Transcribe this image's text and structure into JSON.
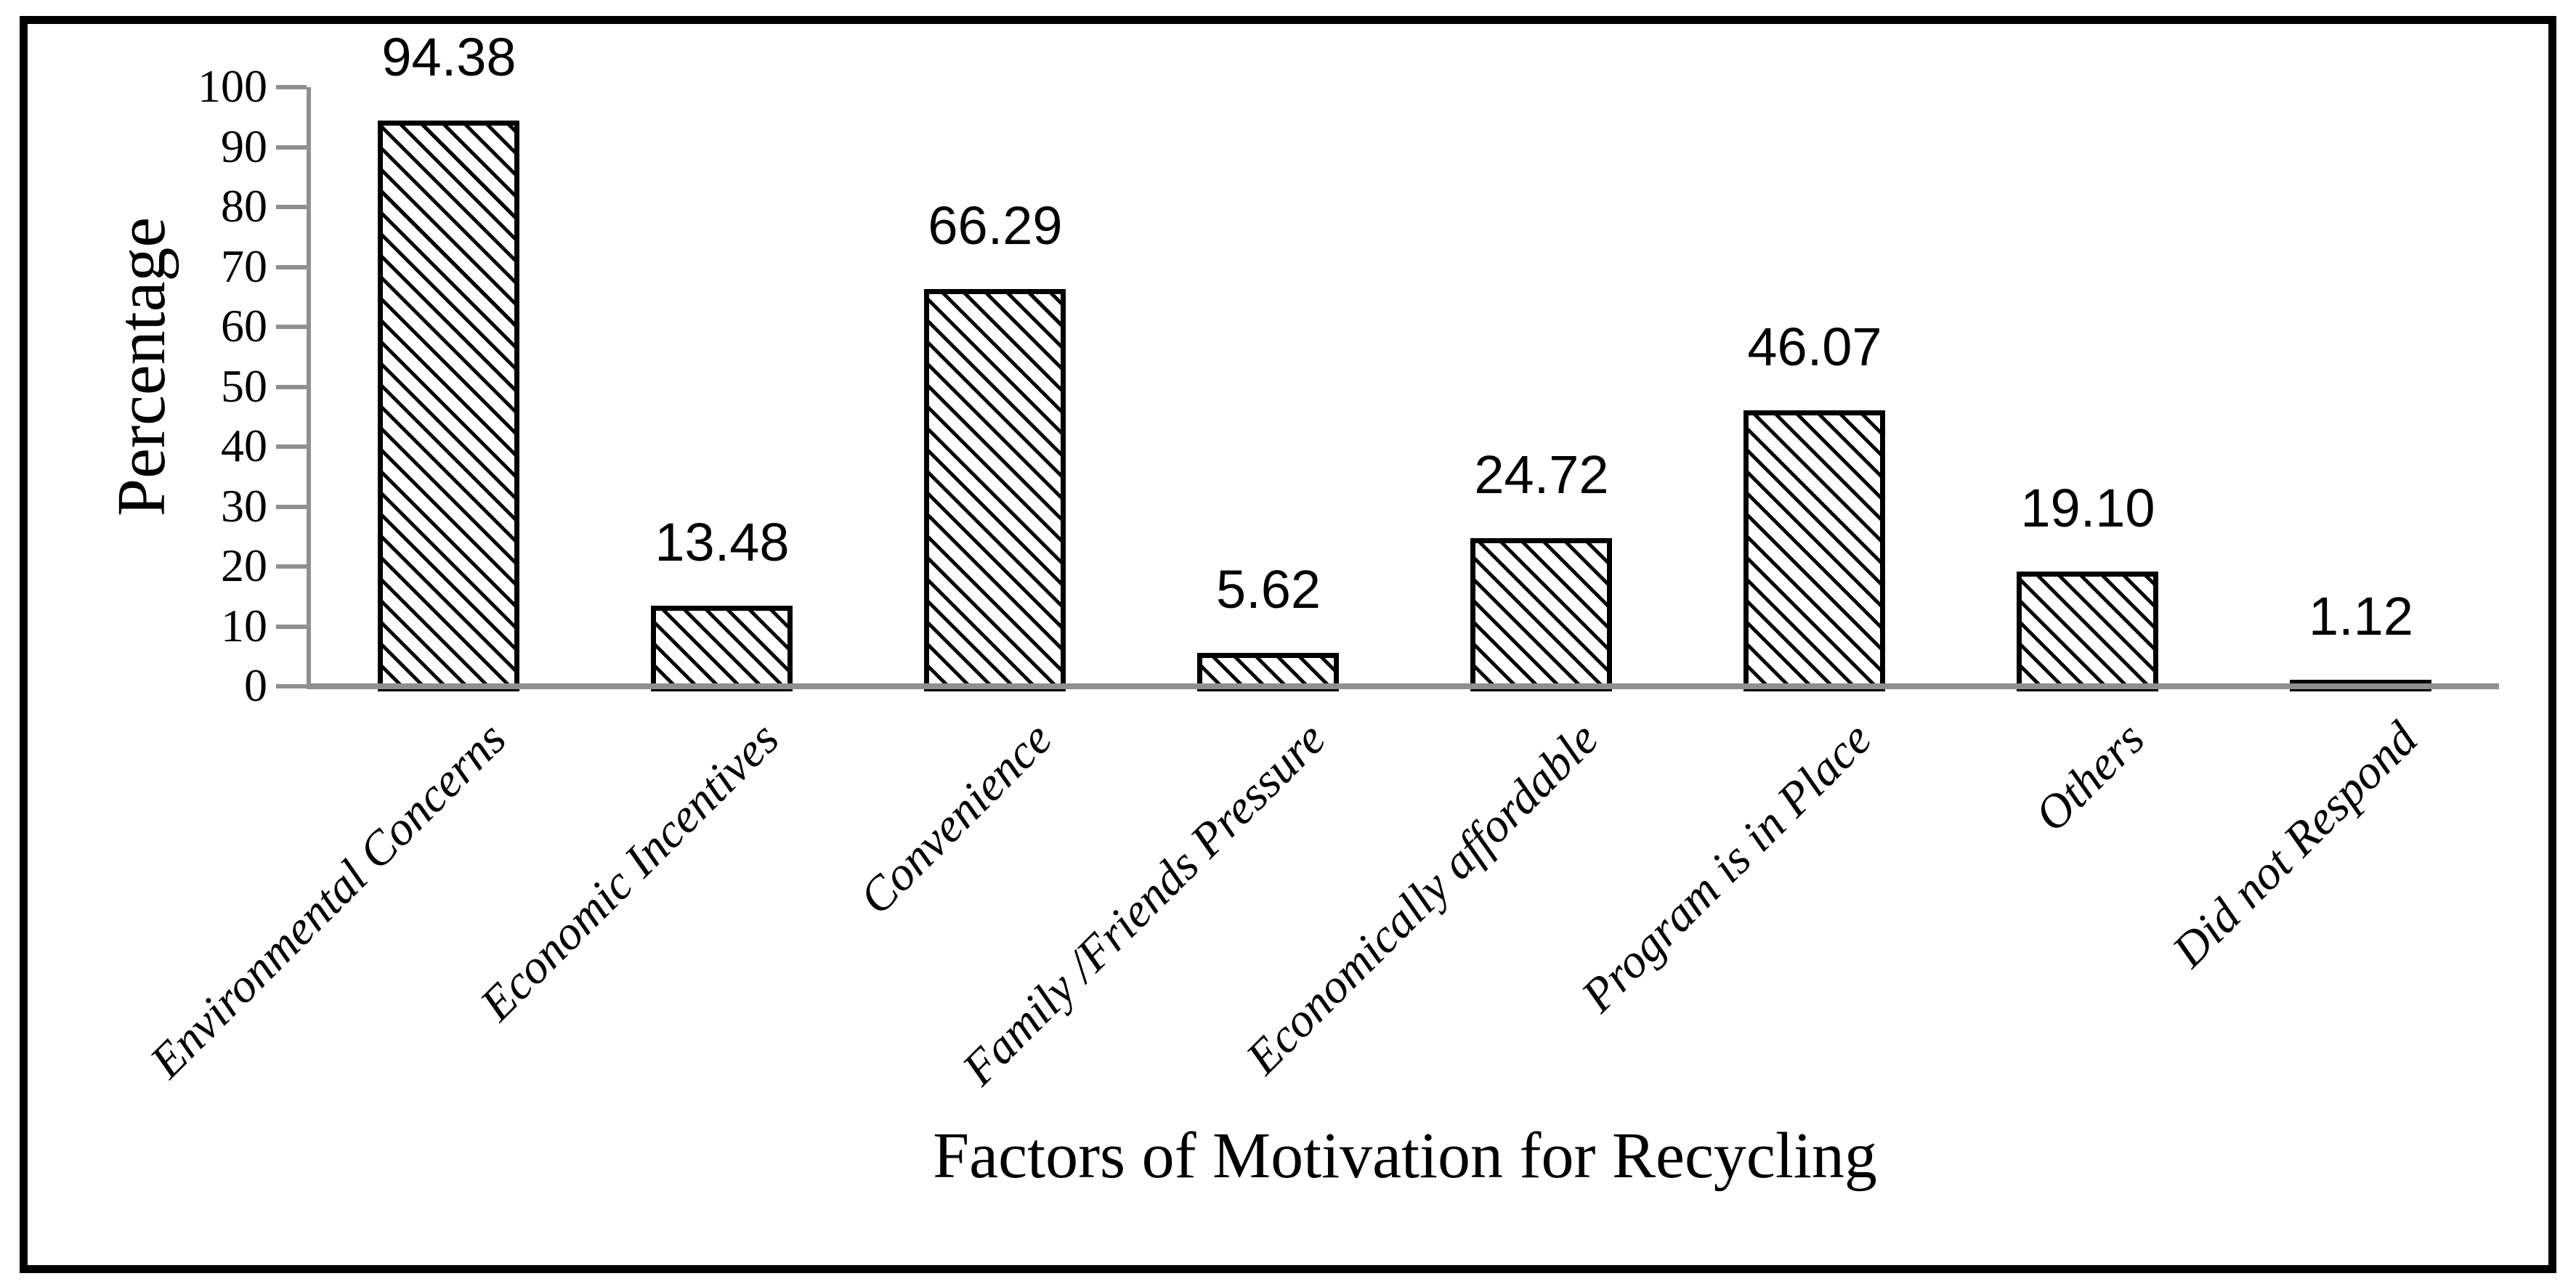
{
  "chart_data": {
    "type": "bar",
    "title": "",
    "xlabel": "Factors of Motivation for Recycling",
    "ylabel": "Percentage",
    "categories": [
      "Environmental Concerns",
      "Economic Incentives",
      "Convenience",
      "Family /Friends Pressure",
      "Economically affordable",
      "Program is in Place",
      "Others",
      "Did not Respond"
    ],
    "values": [
      94.38,
      13.48,
      66.29,
      5.62,
      24.72,
      46.07,
      19.1,
      1.12
    ],
    "value_labels": [
      "94.38",
      "13.48",
      "66.29",
      "5.62",
      "24.72",
      "46.07",
      "19.10",
      "1.12"
    ],
    "ylim": [
      0,
      100
    ],
    "yticks": [
      0,
      10,
      20,
      30,
      40,
      50,
      60,
      70,
      80,
      90,
      100
    ],
    "grid": false,
    "legend": null,
    "bar_fill": "white with black diagonal hatch",
    "bar_border_color": "#000000",
    "axis_color": "#8f8f8f",
    "text_color": "#000000",
    "frame_color": "#000000"
  }
}
